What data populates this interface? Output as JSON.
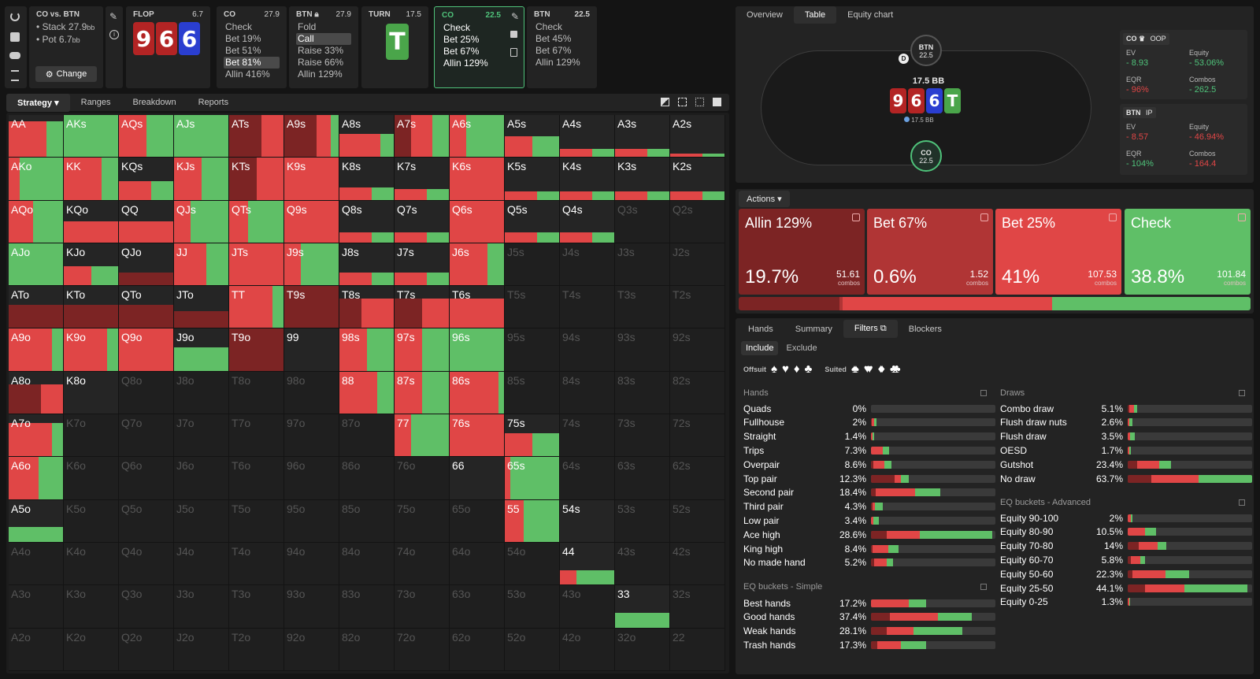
{
  "top": {
    "spot": {
      "title": "CO vs. BTN",
      "stack": "Stack 27.9",
      "stack_unit": "bb",
      "pot": "Pot 6.7",
      "pot_unit": "bb",
      "change": "Change"
    },
    "flop": {
      "label": "FLOP",
      "value": "6.7",
      "cards": [
        "9",
        "6",
        "6"
      ]
    },
    "co1": {
      "label": "CO",
      "value": "27.9",
      "lines": [
        "Check",
        "Bet 19%",
        "Bet 51%",
        "Bet 81%",
        "Allin 416%"
      ],
      "sel": 3
    },
    "btn1": {
      "label": "BTN",
      "value": "27.9",
      "lines": [
        "Fold",
        "Call",
        "Raise 33%",
        "Raise 66%",
        "Allin 129%"
      ],
      "sel": 1
    },
    "turn": {
      "label": "TURN",
      "value": "17.5",
      "card": "T"
    },
    "co2": {
      "label": "CO",
      "value": "22.5",
      "lines": [
        "Check",
        "Bet 25%",
        "Bet 67%",
        "Allin 129%"
      ]
    },
    "btn2": {
      "label": "BTN",
      "value": "22.5",
      "lines": [
        "Check",
        "Bet 45%",
        "Bet 67%",
        "Allin 129%"
      ]
    }
  },
  "left_tabs": [
    "Strategy",
    "Ranges",
    "Breakdown",
    "Reports"
  ],
  "right_tabs": [
    "Overview",
    "Table",
    "Equity chart"
  ],
  "table": {
    "btn_label": "BTN",
    "btn_stack": "22.5",
    "co_label": "CO",
    "co_stack": "22.5",
    "pot": "17.5 BB",
    "chips": "17.5 BB",
    "dealer": "D",
    "board": [
      "9",
      "6",
      "6",
      "T"
    ]
  },
  "stats": {
    "co": {
      "label": "CO",
      "tag": "OOP",
      "ev_label": "EV",
      "ev": "- 8.93",
      "eq_label": "Equity",
      "eq": "- 53.06%",
      "eqr_label": "EQR",
      "eqr": "- 96%",
      "combos_label": "Combos",
      "combos": "- 262.5"
    },
    "btn": {
      "label": "BTN",
      "tag": "IP",
      "ev_label": "EV",
      "ev": "- 8.57",
      "eq_label": "Equity",
      "eq": "- 46.94%",
      "eqr_label": "EQR",
      "eqr": "- 104%",
      "combos_label": "Combos",
      "combos": "- 164.4"
    }
  },
  "actions_label": "Actions",
  "actions": [
    {
      "name": "Allin 129%",
      "pct": "19.7%",
      "combos": "51.61",
      "combos_label": "combos",
      "color": "#7c2424",
      "share": 19.7
    },
    {
      "name": "Bet 67%",
      "pct": "0.6%",
      "combos": "1.52",
      "combos_label": "combos",
      "color": "#b03535",
      "share": 0.6
    },
    {
      "name": "Bet 25%",
      "pct": "41%",
      "combos": "107.53",
      "combos_label": "combos",
      "color": "#e04646",
      "share": 41
    },
    {
      "name": "Check",
      "pct": "38.8%",
      "combos": "101.84",
      "combos_label": "combos",
      "color": "#5fbf67",
      "share": 38.8
    }
  ],
  "bottom_tabs": [
    "Hands",
    "Summary",
    "Filters",
    "Blockers"
  ],
  "filters": {
    "include": "Include",
    "exclude": "Exclude",
    "offsuit": "Offsuit",
    "suited": "Suited"
  },
  "hands_title": "Hands",
  "hands": [
    {
      "name": "Quads",
      "v": "0%",
      "s": [
        0,
        0,
        0
      ]
    },
    {
      "name": "Fullhouse",
      "v": "2%",
      "s": [
        1,
        3,
        3
      ]
    },
    {
      "name": "Straight",
      "v": "1.4%",
      "s": [
        0,
        2,
        2
      ]
    },
    {
      "name": "Trips",
      "v": "7.3%",
      "s": [
        0,
        15,
        8
      ]
    },
    {
      "name": "Overpair",
      "v": "8.6%",
      "s": [
        3,
        14,
        9
      ]
    },
    {
      "name": "Top pair",
      "v": "12.3%",
      "s": [
        30,
        8,
        10
      ]
    },
    {
      "name": "Second pair",
      "v": "18.4%",
      "s": [
        6,
        50,
        32
      ]
    },
    {
      "name": "Third pair",
      "v": "4.3%",
      "s": [
        2,
        3,
        10
      ]
    },
    {
      "name": "Low pair",
      "v": "3.4%",
      "s": [
        0,
        3,
        7
      ]
    },
    {
      "name": "Ace high",
      "v": "28.6%",
      "s": [
        20,
        42,
        92
      ]
    },
    {
      "name": "King high",
      "v": "8.4%",
      "s": [
        2,
        20,
        13
      ]
    },
    {
      "name": "No made hand",
      "v": "5.2%",
      "s": [
        4,
        16,
        8
      ]
    }
  ],
  "eq_simple_title": "EQ buckets - Simple",
  "eq_simple": [
    {
      "name": "Best hands",
      "v": "17.2%",
      "s": [
        0,
        48,
        22
      ]
    },
    {
      "name": "Good hands",
      "v": "37.4%",
      "s": [
        24,
        61,
        43
      ]
    },
    {
      "name": "Weak hands",
      "v": "28.1%",
      "s": [
        20,
        34,
        62
      ]
    },
    {
      "name": "Trash hands",
      "v": "17.3%",
      "s": [
        8,
        30,
        32
      ]
    }
  ],
  "draws_title": "Draws",
  "draws": [
    {
      "name": "Combo draw",
      "v": "5.1%",
      "s": [
        2,
        6,
        4
      ]
    },
    {
      "name": "Flush draw nuts",
      "v": "2.6%",
      "s": [
        0,
        2,
        4
      ]
    },
    {
      "name": "Flush draw",
      "v": "3.5%",
      "s": [
        0,
        3,
        6
      ]
    },
    {
      "name": "OESD",
      "v": "1.7%",
      "s": [
        0,
        2,
        2
      ]
    },
    {
      "name": "Gutshot",
      "v": "23.4%",
      "s": [
        12,
        28,
        15
      ]
    },
    {
      "name": "No draw",
      "v": "63.7%",
      "s": [
        30,
        60,
        68
      ]
    }
  ],
  "eq_adv_title": "EQ buckets - Advanced",
  "eq_adv": [
    {
      "name": "Equity 90-100",
      "v": "2%",
      "s": [
        0,
        4,
        2
      ]
    },
    {
      "name": "Equity 80-90",
      "v": "10.5%",
      "s": [
        0,
        22,
        14
      ]
    },
    {
      "name": "Equity 70-80",
      "v": "14%",
      "s": [
        14,
        24,
        11
      ]
    },
    {
      "name": "Equity 60-70",
      "v": "5.8%",
      "s": [
        4,
        12,
        6
      ]
    },
    {
      "name": "Equity 50-60",
      "v": "22.3%",
      "s": [
        6,
        42,
        30
      ]
    },
    {
      "name": "Equity 25-50",
      "v": "44.1%",
      "s": [
        22,
        50,
        80
      ]
    },
    {
      "name": "Equity 0-25",
      "v": "1.3%",
      "s": [
        0,
        2,
        1
      ]
    }
  ],
  "grid": [
    [
      "AA",
      "AKs",
      "AQs",
      "AJs",
      "ATs",
      "A9s",
      "A8s",
      "A7s",
      "A6s",
      "A5s",
      "A4s",
      "A3s",
      "A2s"
    ],
    [
      "AKo",
      "KK",
      "KQs",
      "KJs",
      "KTs",
      "K9s",
      "K8s",
      "K7s",
      "K6s",
      "K5s",
      "K4s",
      "K3s",
      "K2s"
    ],
    [
      "AQo",
      "KQo",
      "QQ",
      "QJs",
      "QTs",
      "Q9s",
      "Q8s",
      "Q7s",
      "Q6s",
      "Q5s",
      "Q4s",
      "Q3s",
      "Q2s"
    ],
    [
      "AJo",
      "KJo",
      "QJo",
      "JJ",
      "JTs",
      "J9s",
      "J8s",
      "J7s",
      "J6s",
      "J5s",
      "J4s",
      "J3s",
      "J2s"
    ],
    [
      "ATo",
      "KTo",
      "QTo",
      "JTo",
      "TT",
      "T9s",
      "T8s",
      "T7s",
      "T6s",
      "T5s",
      "T4s",
      "T3s",
      "T2s"
    ],
    [
      "A9o",
      "K9o",
      "Q9o",
      "J9o",
      "T9o",
      "99",
      "98s",
      "97s",
      "96s",
      "95s",
      "94s",
      "93s",
      "92s"
    ],
    [
      "A8o",
      "K8o",
      "Q8o",
      "J8o",
      "T8o",
      "98o",
      "88",
      "87s",
      "86s",
      "85s",
      "84s",
      "83s",
      "82s"
    ],
    [
      "A7o",
      "K7o",
      "Q7o",
      "J7o",
      "T7o",
      "97o",
      "87o",
      "77",
      "76s",
      "75s",
      "74s",
      "73s",
      "72s"
    ],
    [
      "A6o",
      "K6o",
      "Q6o",
      "J6o",
      "T6o",
      "96o",
      "86o",
      "76o",
      "66",
      "65s",
      "64s",
      "63s",
      "62s"
    ],
    [
      "A5o",
      "K5o",
      "Q5o",
      "J5o",
      "T5o",
      "95o",
      "85o",
      "75o",
      "65o",
      "55",
      "54s",
      "53s",
      "52s"
    ],
    [
      "A4o",
      "K4o",
      "Q4o",
      "J4o",
      "T4o",
      "94o",
      "84o",
      "74o",
      "64o",
      "54o",
      "44",
      "43s",
      "42s"
    ],
    [
      "A3o",
      "K3o",
      "Q3o",
      "J3o",
      "T3o",
      "93o",
      "83o",
      "73o",
      "63o",
      "53o",
      "43o",
      "33",
      "32s"
    ],
    [
      "A2o",
      "K2o",
      "Q2o",
      "J2o",
      "T2o",
      "92o",
      "82o",
      "72o",
      "62o",
      "52o",
      "42o",
      "32o",
      "22"
    ]
  ],
  "off_cells": [
    "Q3s",
    "Q2s",
    "J5s",
    "J4s",
    "J3s",
    "J2s",
    "T5s",
    "T4s",
    "T3s",
    "T2s",
    "95s",
    "94s",
    "93s",
    "92s",
    "Q8o",
    "J8o",
    "T8o",
    "98o",
    "85s",
    "84s",
    "83s",
    "82s",
    "K7o",
    "Q7o",
    "J7o",
    "T7o",
    "97o",
    "87o",
    "74s",
    "73s",
    "72s",
    "K6o",
    "Q6o",
    "J6o",
    "T6o",
    "96o",
    "86o",
    "76o",
    "64s",
    "63s",
    "62s",
    "K5o",
    "Q5o",
    "J5o",
    "T5o",
    "95o",
    "85o",
    "75o",
    "65o",
    "53s",
    "52s",
    "A4o",
    "K4o",
    "Q4o",
    "J4o",
    "T4o",
    "94o",
    "84o",
    "74o",
    "64o",
    "54o",
    "43s",
    "42s",
    "A3o",
    "K3o",
    "Q3o",
    "J3o",
    "T3o",
    "93o",
    "83o",
    "73o",
    "63o",
    "53o",
    "43o",
    "32s",
    "A2o",
    "K2o",
    "Q2o",
    "J2o",
    "T2o",
    "92o",
    "82o",
    "72o",
    "62o",
    "52o",
    "42o",
    "32o",
    "22"
  ],
  "cell_fills": {
    "AA": [
      [
        "R",
        70
      ],
      [
        "G",
        30
      ]
    ],
    "AKs": [
      [
        "G",
        100
      ]
    ],
    "AQs": [
      [
        "R",
        50
      ],
      [
        "G",
        50
      ]
    ],
    "AJs": [
      [
        "G",
        100
      ]
    ],
    "ATs": [
      [
        "D",
        60
      ],
      [
        "R",
        40
      ]
    ],
    "A9s": [
      [
        "D",
        60
      ],
      [
        "R",
        25
      ],
      [
        "G",
        15
      ]
    ],
    "A8s": [
      [
        "R",
        75
      ],
      [
        "G",
        25
      ]
    ],
    "A7s": [
      [
        "D",
        30
      ],
      [
        "R",
        40
      ],
      [
        "G",
        30
      ]
    ],
    "A6s": [
      [
        "R",
        30
      ],
      [
        "G",
        70
      ]
    ],
    "A5s": [
      [
        "R",
        50
      ],
      [
        "G",
        50
      ]
    ],
    "AKo": [
      [
        "R",
        20
      ],
      [
        "G",
        80
      ]
    ],
    "KK": [
      [
        "R",
        70
      ],
      [
        "G",
        30
      ]
    ],
    "KJs": [
      [
        "R",
        50
      ],
      [
        "G",
        50
      ]
    ],
    "KTs": [
      [
        "D",
        50
      ],
      [
        "R",
        50
      ]
    ],
    "K9s": [
      [
        "R",
        100
      ]
    ],
    "K6s": [
      [
        "R",
        100
      ]
    ],
    "AQo": [
      [
        "R",
        45
      ],
      [
        "G",
        55
      ]
    ],
    "KQo": [
      [
        "R",
        100
      ]
    ],
    "QQ": [
      [
        "R",
        100
      ]
    ],
    "QJs": [
      [
        "R",
        30
      ],
      [
        "G",
        70
      ]
    ],
    "QTs": [
      [
        "R",
        35
      ],
      [
        "G",
        65
      ]
    ],
    "Q9s": [
      [
        "R",
        100
      ]
    ],
    "Q6s": [
      [
        "R",
        100
      ]
    ],
    "AJo": [
      [
        "G",
        100
      ]
    ],
    "KJo": [
      [
        "R",
        50
      ],
      [
        "G",
        50
      ]
    ],
    "QJo": [
      [
        "D",
        100
      ]
    ],
    "JJ": [
      [
        "R",
        60
      ],
      [
        "G",
        40
      ]
    ],
    "JTs": [
      [
        "R",
        100
      ]
    ],
    "J9s": [
      [
        "R",
        30
      ],
      [
        "G",
        70
      ]
    ],
    "J6s": [
      [
        "R",
        70
      ],
      [
        "G",
        30
      ]
    ],
    "ATo": [
      [
        "D",
        100
      ]
    ],
    "KTo": [
      [
        "D",
        100
      ]
    ],
    "QTo": [
      [
        "D",
        100
      ]
    ],
    "JTo": [
      [
        "D",
        100
      ]
    ],
    "TT": [
      [
        "R",
        80
      ],
      [
        "G",
        20
      ]
    ],
    "T9s": [
      [
        "D",
        100
      ]
    ],
    "T8s": [
      [
        "D",
        40
      ],
      [
        "R",
        60
      ]
    ],
    "T7s": [
      [
        "D",
        50
      ],
      [
        "R",
        50
      ]
    ],
    "T6s": [
      [
        "R",
        100
      ]
    ],
    "A9o": [
      [
        "R",
        80
      ],
      [
        "G",
        20
      ]
    ],
    "K9o": [
      [
        "R",
        80
      ],
      [
        "G",
        20
      ]
    ],
    "Q9o": [
      [
        "R",
        100
      ]
    ],
    "J9o": [
      [
        "G",
        100
      ]
    ],
    "T9o": [
      [
        "D",
        100
      ]
    ],
    "98s": [
      [
        "R",
        50
      ],
      [
        "G",
        50
      ]
    ],
    "97s": [
      [
        "R",
        50
      ],
      [
        "G",
        50
      ]
    ],
    "96s": [
      [
        "G",
        100
      ]
    ],
    "A8o": [
      [
        "D",
        60
      ],
      [
        "R",
        40
      ]
    ],
    "88": [
      [
        "R",
        70
      ],
      [
        "G",
        30
      ]
    ],
    "87s": [
      [
        "R",
        50
      ],
      [
        "G",
        50
      ]
    ],
    "86s": [
      [
        "R",
        90
      ],
      [
        "G",
        10
      ]
    ],
    "A7o": [
      [
        "R",
        80
      ],
      [
        "G",
        20
      ]
    ],
    "77": [
      [
        "R",
        30
      ],
      [
        "G",
        70
      ]
    ],
    "76s": [
      [
        "R",
        100
      ]
    ],
    "75s": [
      [
        "R",
        50
      ],
      [
        "G",
        50
      ]
    ],
    "A6o": [
      [
        "R",
        55
      ],
      [
        "G",
        45
      ]
    ],
    "65s": [
      [
        "R",
        10
      ],
      [
        "G",
        90
      ]
    ],
    "A5o": [
      [
        "G",
        100
      ]
    ],
    "55": [
      [
        "R",
        35
      ],
      [
        "G",
        65
      ]
    ],
    "44": [
      [
        "R",
        30
      ],
      [
        "G",
        70
      ]
    ],
    "33": [
      [
        "G",
        100
      ]
    ]
  },
  "cell_heights": {
    "A5s": 50,
    "A4s": 20,
    "A3s": 20,
    "A2s": 8,
    "KQs": 45,
    "K8s": 30,
    "K7s": 25,
    "K5s": 20,
    "K4s": 20,
    "K3s": 20,
    "K2s": 20,
    "Q8s": 25,
    "Q7s": 25,
    "Q5s": 25,
    "Q4s": 25,
    "J8s": 30,
    "J7s": 30,
    "KJo": 45,
    "A9o": 100,
    "A8o": 70,
    "A7o": 80,
    "A6o": 100,
    "A5o": 35,
    "44": 35,
    "33": 35,
    "ATo": 55,
    "KTo": 55,
    "QTo": 55,
    "JTo": 40,
    "QJo": 30,
    "AA": 85,
    "KK": 100,
    "QQ": 50,
    "JJ": 100,
    "TT": 100,
    "99": 0,
    "98s": 100,
    "97s": 100,
    "96s": 100,
    "88": 100,
    "87s": 100,
    "86s": 100,
    "77": 100,
    "76s": 100,
    "75s": 55,
    "65s": 100,
    "55": 100,
    "KJs": 100,
    "K6s": 100,
    "Q6s": 100,
    "J6s": 100,
    "J9s": 100,
    "T6s": 70,
    "T7s": 70,
    "T8s": 70,
    "T9s": 100,
    "J9o": 55,
    "K9o": 100,
    "Q9o": 100,
    "T9o": 100,
    "KTs": 100,
    "ATs": 100,
    "A9s": 100,
    "A8s": 55,
    "A7s": 100,
    "A6s": 100,
    "AKs": 100,
    "AQs": 100,
    "AJs": 100,
    "QJs": 100,
    "QTs": 100,
    "Q9s": 100,
    "K9s": 100,
    "JTs": 100,
    "AKo": 100,
    "AQo": 100,
    "AJo": 100,
    "KQo": 50
  }
}
